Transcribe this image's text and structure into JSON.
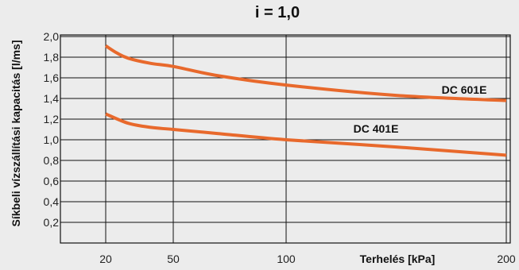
{
  "chart_data": {
    "type": "line",
    "title": "i = 1,0",
    "xlabel": "Terhelés [kPa]",
    "ylabel": "Síkbeli vízszállítási kapacitás [l/ms]",
    "x_ticks": [
      20,
      50,
      100,
      200
    ],
    "x_tick_labels": [
      "20",
      "50",
      "100",
      "200"
    ],
    "y_ticks": [
      0.2,
      0.4,
      0.6,
      0.8,
      1.0,
      1.2,
      1.4,
      1.6,
      1.8,
      2.0
    ],
    "y_tick_labels": [
      "0,2",
      "0,4",
      "0,6",
      "0,8",
      "1,0",
      "1,2",
      "1,4",
      "1,6",
      "1,8",
      "2,0"
    ],
    "xlim": [
      20,
      200
    ],
    "ylim": [
      0,
      2.0
    ],
    "grid": true,
    "series": [
      {
        "name": "DC 601E",
        "color": "#e8692c",
        "x": [
          20,
          25,
          30,
          40,
          50,
          70,
          100,
          150,
          200
        ],
        "y": [
          1.91,
          1.84,
          1.79,
          1.74,
          1.71,
          1.62,
          1.53,
          1.43,
          1.38
        ]
      },
      {
        "name": "DC 401E",
        "color": "#e8692c",
        "x": [
          20,
          30,
          40,
          50,
          70,
          100,
          150,
          200
        ],
        "y": [
          1.25,
          1.16,
          1.12,
          1.1,
          1.06,
          1.0,
          0.93,
          0.85
        ]
      }
    ]
  }
}
